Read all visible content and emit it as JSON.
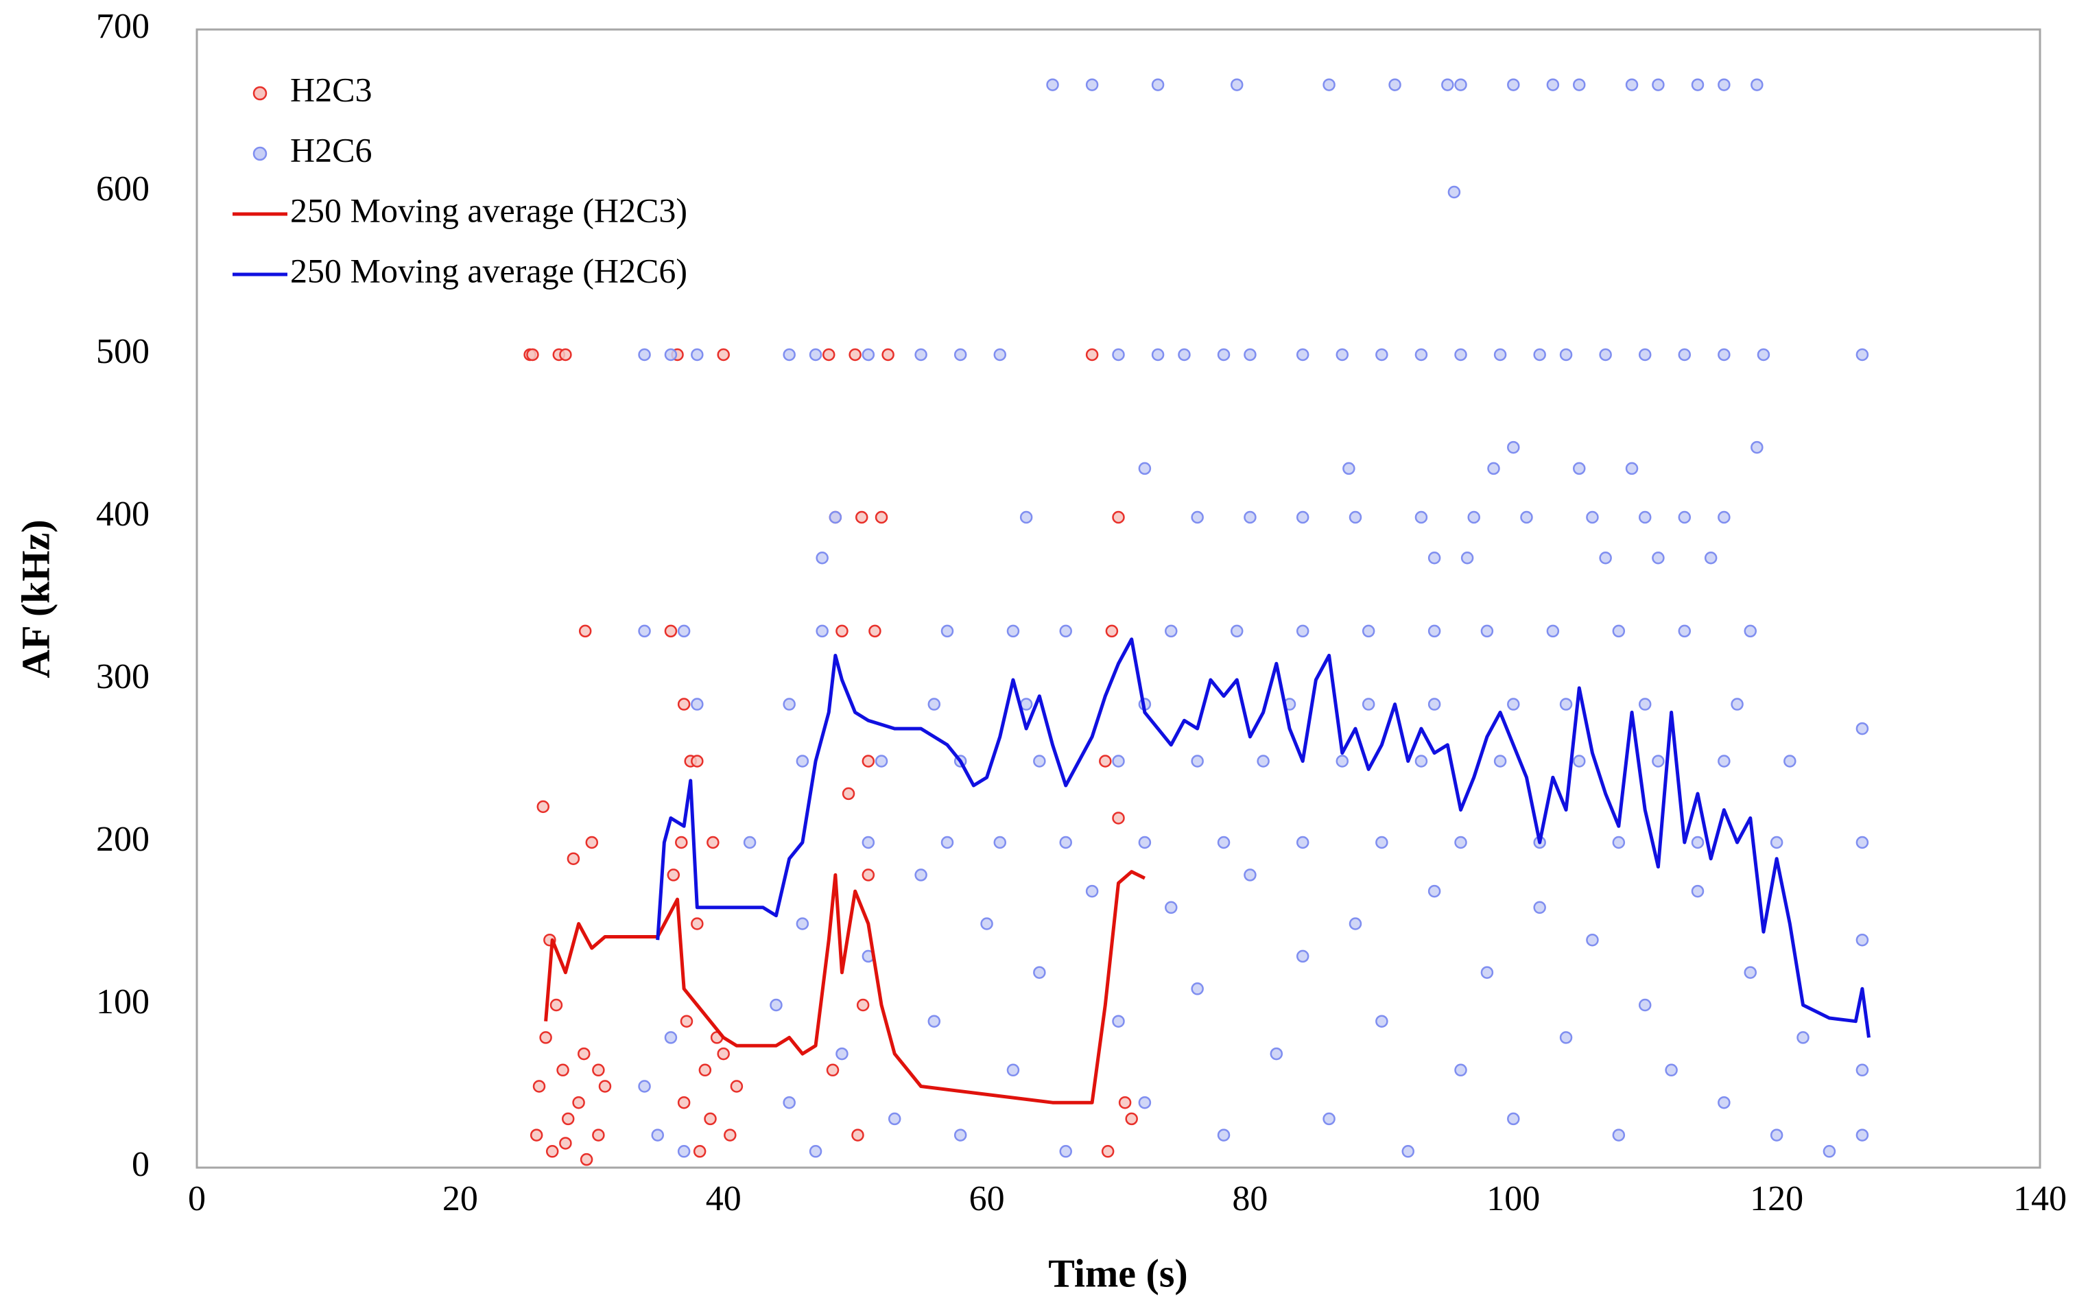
{
  "chart_data": {
    "type": "scatter",
    "x_label": "Time (s)",
    "y_label": "AF (kHz)",
    "xlim": [
      0,
      140
    ],
    "xticks": [
      0,
      20,
      40,
      60,
      80,
      100,
      120,
      140
    ],
    "ylim": [
      0,
      700
    ],
    "yticks": [
      0,
      100,
      200,
      300,
      400,
      500,
      600,
      700
    ],
    "grid": false,
    "legend": "upper left",
    "series": [
      {
        "name": "H2C3",
        "type": "scatter",
        "color": "#e8302a",
        "fill": "#f7c4c0",
        "x": [
          25.3,
          25.5,
          27.5,
          28,
          29.5,
          26.3,
          25.8,
          26,
          26.5,
          27,
          27.3,
          27.8,
          28.2,
          28.6,
          29,
          29.4,
          30,
          30.5,
          31,
          26.8,
          28,
          29.6,
          30.5,
          36,
          36.5,
          37,
          37.5,
          38,
          36.8,
          37.2,
          37,
          38.2,
          38.6,
          39,
          39.5,
          40,
          40.5,
          41,
          36.2,
          38,
          39.2,
          40,
          48,
          48.5,
          49,
          49.5,
          50,
          50.5,
          51,
          51.5,
          52,
          52.5,
          48.3,
          50.2,
          51,
          50.6,
          68,
          69,
          69.5,
          70,
          70.5,
          71,
          69.2,
          70
        ],
        "values": [
          500,
          500,
          500,
          500,
          330,
          222,
          20,
          50,
          80,
          10,
          100,
          60,
          30,
          190,
          40,
          70,
          200,
          20,
          50,
          140,
          15,
          5,
          60,
          330,
          500,
          285,
          250,
          250,
          200,
          90,
          40,
          10,
          60,
          30,
          80,
          500,
          20,
          50,
          180,
          150,
          200,
          70,
          500,
          400,
          330,
          230,
          500,
          400,
          250,
          330,
          400,
          500,
          60,
          20,
          180,
          100,
          500,
          250,
          330,
          400,
          40,
          30,
          10,
          215
        ]
      },
      {
        "name": "H2C6",
        "type": "scatter",
        "color": "#7f8ef0",
        "fill": "#c8cff6",
        "x": [
          65,
          68,
          73,
          79,
          86,
          91,
          95,
          96,
          100,
          103,
          105,
          109,
          111,
          114,
          116,
          118.5,
          95.5,
          34,
          36,
          38,
          45,
          47,
          51,
          55,
          58,
          61,
          70,
          73,
          75,
          78,
          80,
          84,
          87,
          90,
          93,
          96,
          99,
          102,
          104,
          107,
          110,
          113,
          116,
          119,
          126.5,
          100,
          118.5,
          72,
          87.5,
          98.5,
          105,
          109,
          48.5,
          63,
          76,
          80,
          84,
          88,
          93,
          97,
          101,
          106,
          110,
          113,
          116,
          47.5,
          94,
          96.5,
          107,
          111,
          115,
          34,
          37,
          47.5,
          57,
          62,
          66,
          74,
          79,
          84,
          89,
          94,
          98,
          103,
          108,
          113,
          118,
          38,
          45,
          56,
          63,
          72,
          83,
          89,
          94,
          100,
          104,
          110,
          117,
          46,
          52,
          58,
          64,
          70,
          76,
          81,
          87,
          93,
          99,
          105,
          111,
          116,
          121,
          42,
          51,
          57,
          61,
          66,
          72,
          78,
          84,
          90,
          96,
          102,
          108,
          114,
          120,
          126.5,
          34,
          35,
          36,
          37,
          44,
          45,
          46,
          47,
          49,
          51,
          53,
          55,
          56,
          58,
          60,
          62,
          64,
          66,
          68,
          70,
          72,
          74,
          76,
          78,
          80,
          82,
          84,
          86,
          88,
          90,
          92,
          94,
          96,
          98,
          100,
          102,
          104,
          106,
          108,
          110,
          112,
          114,
          116,
          118,
          120,
          122,
          124,
          126.5,
          126.5,
          126.5,
          126.5
        ],
        "values": [
          666,
          666,
          666,
          666,
          666,
          666,
          666,
          666,
          666,
          666,
          666,
          666,
          666,
          666,
          666,
          666,
          600,
          500,
          500,
          500,
          500,
          500,
          500,
          500,
          500,
          500,
          500,
          500,
          500,
          500,
          500,
          500,
          500,
          500,
          500,
          500,
          500,
          500,
          500,
          500,
          500,
          500,
          500,
          500,
          500,
          443,
          443,
          430,
          430,
          430,
          430,
          430,
          400,
          400,
          400,
          400,
          400,
          400,
          400,
          400,
          400,
          400,
          400,
          400,
          400,
          375,
          375,
          375,
          375,
          375,
          375,
          330,
          330,
          330,
          330,
          330,
          330,
          330,
          330,
          330,
          330,
          330,
          330,
          330,
          330,
          330,
          330,
          285,
          285,
          285,
          285,
          285,
          285,
          285,
          285,
          285,
          285,
          285,
          285,
          250,
          250,
          250,
          250,
          250,
          250,
          250,
          250,
          250,
          250,
          250,
          250,
          250,
          250,
          200,
          200,
          200,
          200,
          200,
          200,
          200,
          200,
          200,
          200,
          200,
          200,
          200,
          200,
          200,
          50,
          20,
          80,
          10,
          100,
          40,
          150,
          10,
          70,
          130,
          30,
          180,
          90,
          20,
          150,
          60,
          120,
          10,
          170,
          90,
          40,
          160,
          110,
          20,
          180,
          70,
          130,
          30,
          150,
          90,
          10,
          170,
          60,
          120,
          30,
          160,
          80,
          140,
          20,
          100,
          60,
          170,
          40,
          120,
          20,
          80,
          10,
          60,
          140,
          20,
          270
        ]
      },
      {
        "name": "250 Moving average (H2C3)",
        "type": "line",
        "color": "#e0120c",
        "x": [
          26.5,
          27,
          28,
          29,
          30,
          31,
          35,
          36.5,
          37,
          38,
          40,
          41,
          44,
          45,
          46,
          47,
          48,
          48.5,
          49,
          50,
          51,
          52,
          53,
          55,
          60,
          65,
          68,
          69,
          70,
          71,
          72
        ],
        "values": [
          90,
          140,
          120,
          150,
          135,
          142,
          142,
          165,
          110,
          100,
          80,
          75,
          75,
          80,
          70,
          75,
          140,
          180,
          120,
          170,
          150,
          100,
          70,
          50,
          45,
          40,
          40,
          100,
          175,
          182,
          178
        ]
      },
      {
        "name": "250 Moving average (H2C6)",
        "type": "line",
        "color": "#1010e0",
        "x": [
          35,
          35.5,
          36,
          37,
          37.5,
          38,
          43,
          44,
          45,
          46,
          47,
          48,
          48.5,
          49,
          50,
          51,
          53,
          55,
          57,
          58,
          59,
          60,
          61,
          62,
          63,
          64,
          65,
          66,
          67,
          68,
          69,
          70,
          71,
          72,
          73,
          74,
          75,
          76,
          77,
          78,
          79,
          80,
          81,
          82,
          83,
          84,
          85,
          86,
          87,
          88,
          89,
          90,
          91,
          92,
          93,
          94,
          95,
          96,
          97,
          98,
          99,
          100,
          101,
          102,
          103,
          104,
          105,
          106,
          107,
          108,
          109,
          110,
          111,
          112,
          113,
          114,
          115,
          116,
          117,
          118,
          119,
          120,
          121,
          122,
          124,
          126,
          126.5,
          127
        ],
        "values": [
          140,
          200,
          215,
          210,
          238,
          160,
          160,
          155,
          190,
          200,
          250,
          280,
          315,
          300,
          280,
          275,
          270,
          270,
          260,
          250,
          235,
          240,
          265,
          300,
          270,
          290,
          260,
          235,
          250,
          265,
          290,
          310,
          325,
          280,
          270,
          260,
          275,
          270,
          300,
          290,
          300,
          265,
          280,
          310,
          270,
          250,
          300,
          315,
          255,
          270,
          245,
          260,
          285,
          250,
          270,
          255,
          260,
          220,
          240,
          265,
          280,
          260,
          240,
          200,
          240,
          220,
          295,
          255,
          230,
          210,
          280,
          220,
          185,
          280,
          200,
          230,
          190,
          220,
          200,
          215,
          145,
          190,
          150,
          100,
          92,
          90,
          110,
          80
        ]
      }
    ]
  }
}
